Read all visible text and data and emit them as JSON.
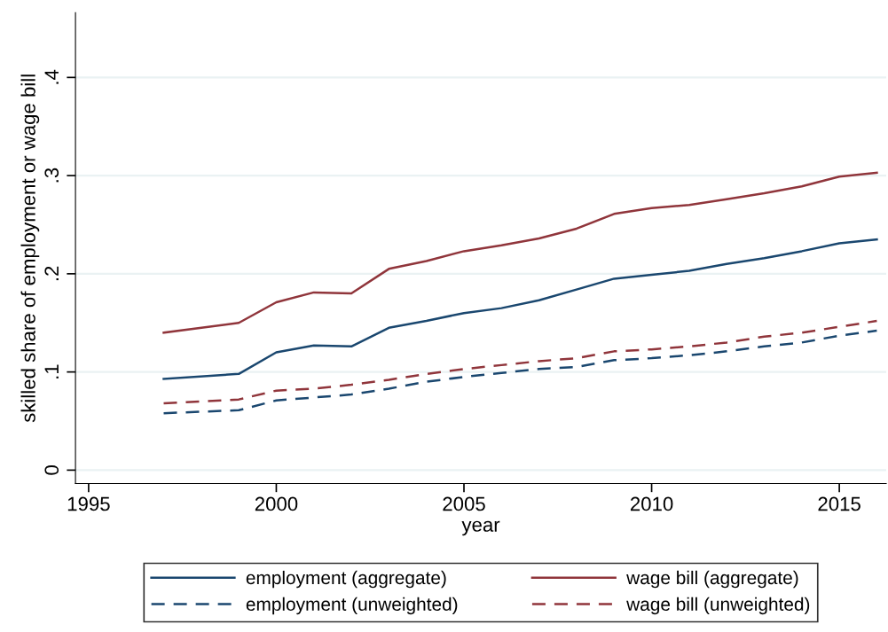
{
  "chart_data": {
    "type": "line",
    "xlabel": "year",
    "ylabel": "skilled share of employment or wage bill",
    "x": [
      1997,
      1999,
      2000,
      2001,
      2002,
      2003,
      2004,
      2005,
      2006,
      2007,
      2008,
      2009,
      2010,
      2011,
      2012,
      2013,
      2014,
      2015,
      2016
    ],
    "series": [
      {
        "name": "employment (aggregate)",
        "color": "#1a476f",
        "line_style": "solid",
        "values": [
          0.093,
          0.098,
          0.12,
          0.127,
          0.126,
          0.145,
          0.152,
          0.16,
          0.165,
          0.173,
          0.184,
          0.195,
          0.199,
          0.203,
          0.21,
          0.216,
          0.223,
          0.231,
          0.235
        ]
      },
      {
        "name": "wage bill (aggregate)",
        "color": "#90353b",
        "line_style": "solid",
        "values": [
          0.14,
          0.15,
          0.171,
          0.181,
          0.18,
          0.205,
          0.213,
          0.223,
          0.229,
          0.236,
          0.246,
          0.261,
          0.267,
          0.27,
          0.276,
          0.282,
          0.289,
          0.299,
          0.303
        ]
      },
      {
        "name": "employment (unweighted)",
        "color": "#1a476f",
        "line_style": "dashed",
        "values": [
          0.058,
          0.061,
          0.071,
          0.074,
          0.077,
          0.083,
          0.09,
          0.095,
          0.099,
          0.103,
          0.105,
          0.112,
          0.114,
          0.117,
          0.121,
          0.126,
          0.13,
          0.137,
          0.142
        ]
      },
      {
        "name": "wage bill (unweighted)",
        "color": "#90353b",
        "line_style": "dashed",
        "values": [
          0.068,
          0.072,
          0.081,
          0.083,
          0.087,
          0.092,
          0.098,
          0.103,
          0.107,
          0.111,
          0.114,
          0.121,
          0.123,
          0.126,
          0.13,
          0.136,
          0.14,
          0.146,
          0.152
        ]
      }
    ],
    "xlim": [
      1994.65,
      2016.25
    ],
    "xticks": [
      1995,
      2000,
      2005,
      2010,
      2015
    ],
    "ylim": [
      -0.0136,
      0.466
    ],
    "yticks": [
      {
        "value": 0,
        "label": "0"
      },
      {
        "value": 0.1,
        "label": ".1"
      },
      {
        "value": 0.2,
        "label": ".2"
      },
      {
        "value": 0.3,
        "label": ".3"
      },
      {
        "value": 0.4,
        "label": ".4"
      }
    ],
    "grid": "y",
    "legend": "bottom",
    "marker": "none"
  }
}
